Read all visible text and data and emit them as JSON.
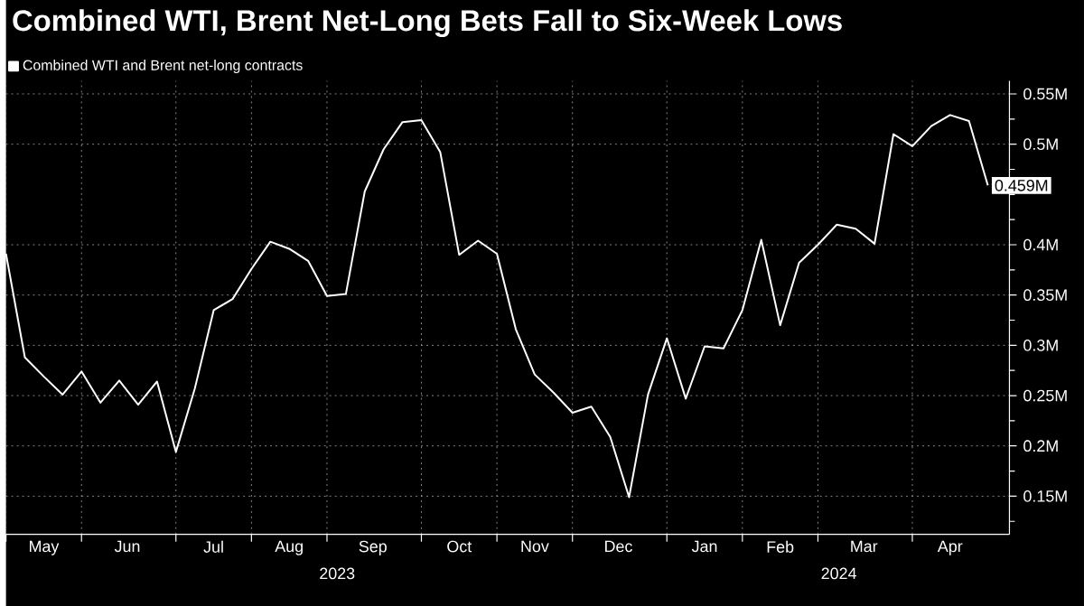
{
  "chart_data": {
    "type": "line",
    "title": "Combined WTI, Brent Net-Long Bets Fall to Six-Week Lows",
    "x": [
      "2023-05-05",
      "2023-05-12",
      "2023-05-19",
      "2023-05-26",
      "2023-06-02",
      "2023-06-09",
      "2023-06-16",
      "2023-06-23",
      "2023-06-30",
      "2023-07-07",
      "2023-07-14",
      "2023-07-21",
      "2023-07-28",
      "2023-08-04",
      "2023-08-11",
      "2023-08-18",
      "2023-08-25",
      "2023-09-01",
      "2023-09-08",
      "2023-09-15",
      "2023-09-22",
      "2023-09-29",
      "2023-10-06",
      "2023-10-13",
      "2023-10-20",
      "2023-10-27",
      "2023-11-03",
      "2023-11-10",
      "2023-11-17",
      "2023-11-24",
      "2023-12-01",
      "2023-12-08",
      "2023-12-15",
      "2023-12-22",
      "2023-12-29",
      "2024-01-05",
      "2024-01-12",
      "2024-01-19",
      "2024-01-26",
      "2024-02-02",
      "2024-02-09",
      "2024-02-16",
      "2024-02-23",
      "2024-03-01",
      "2024-03-08",
      "2024-03-15",
      "2024-03-22",
      "2024-03-29",
      "2024-04-05",
      "2024-04-12",
      "2024-04-19",
      "2024-04-26",
      "2024-05-03"
    ],
    "series": [
      {
        "name": "Combined WTI and Brent net-long contracts",
        "color": "#ffffff",
        "values": [
          0.391,
          0.288,
          0.269,
          0.251,
          0.274,
          0.243,
          0.265,
          0.241,
          0.264,
          0.194,
          0.257,
          0.335,
          0.346,
          0.376,
          0.403,
          0.396,
          0.384,
          0.349,
          0.351,
          0.453,
          0.495,
          0.522,
          0.524,
          0.492,
          0.39,
          0.404,
          0.391,
          0.316,
          0.271,
          0.253,
          0.233,
          0.239,
          0.209,
          0.149,
          0.251,
          0.307,
          0.247,
          0.299,
          0.297,
          0.335,
          0.405,
          0.32,
          0.382,
          0.4,
          0.42,
          0.416,
          0.401,
          0.51,
          0.498,
          0.518,
          0.529,
          0.523,
          0.459
        ],
        "value_labels": [
          null,
          null,
          null,
          null,
          null,
          null,
          null,
          null,
          null,
          null,
          null,
          null,
          null,
          null,
          null,
          null,
          null,
          null,
          null,
          null,
          null,
          null,
          null,
          null,
          null,
          null,
          null,
          null,
          null,
          null,
          null,
          null,
          null,
          null,
          null,
          null,
          null,
          null,
          null,
          null,
          null,
          null,
          null,
          null,
          null,
          null,
          null,
          null,
          null,
          null,
          null,
          null,
          "0.459M"
        ]
      }
    ],
    "xlim": [
      "2023-05-05",
      "2024-05-11"
    ],
    "xticks": [
      {
        "value": "2023-05-05",
        "label": null
      },
      {
        "value": "2023-06-02",
        "label": null
      },
      {
        "value": "2023-07-07",
        "label": null
      },
      {
        "value": "2023-08-04",
        "label": null
      },
      {
        "value": "2023-09-01",
        "label": null
      },
      {
        "value": "2023-10-06",
        "label": null
      },
      {
        "value": "2023-11-03",
        "label": null
      },
      {
        "value": "2023-12-01",
        "label": null
      },
      {
        "value": "2024-01-05",
        "label": null
      },
      {
        "value": "2024-02-02",
        "label": null
      },
      {
        "value": "2024-03-01",
        "label": null
      },
      {
        "value": "2024-04-05",
        "label": null
      },
      {
        "value": "2023-05-19",
        "label": "May"
      },
      {
        "value": "2023-06-19",
        "label": "Jun"
      },
      {
        "value": "2023-07-21",
        "label": "Jul"
      },
      {
        "value": "2023-08-18",
        "label": "Aug"
      },
      {
        "value": "2023-09-18",
        "label": "Sep"
      },
      {
        "value": "2023-10-20",
        "label": "Oct"
      },
      {
        "value": "2023-11-17",
        "label": "Nov"
      },
      {
        "value": "2023-12-18",
        "label": "Dec"
      },
      {
        "value": "2024-01-19",
        "label": "Jan"
      },
      {
        "value": "2024-02-16",
        "label": "Feb"
      },
      {
        "value": "2024-03-18",
        "label": "Mar"
      },
      {
        "value": "2024-04-19",
        "label": "Apr"
      }
    ],
    "annotations": [
      "2023",
      "2024"
    ],
    "ylim": [
      0.112,
      0.563
    ],
    "yticks": [
      {
        "value": 0.125,
        "label": null
      },
      {
        "value": 0.15,
        "label": "0.15M"
      },
      {
        "value": 0.175,
        "label": null
      },
      {
        "value": 0.2,
        "label": "0.2M"
      },
      {
        "value": 0.225,
        "label": null
      },
      {
        "value": 0.25,
        "label": "0.25M"
      },
      {
        "value": 0.275,
        "label": null
      },
      {
        "value": 0.3,
        "label": "0.3M"
      },
      {
        "value": 0.325,
        "label": null
      },
      {
        "value": 0.35,
        "label": "0.35M"
      },
      {
        "value": 0.375,
        "label": null
      },
      {
        "value": 0.4,
        "label": "0.4M"
      },
      {
        "value": 0.425,
        "label": null
      },
      {
        "value": 0.45,
        "label": null
      },
      {
        "value": 0.475,
        "label": null
      },
      {
        "value": 0.5,
        "label": "0.5M"
      },
      {
        "value": 0.525,
        "label": null
      },
      {
        "value": 0.55,
        "label": "0.55M"
      }
    ],
    "grid": true,
    "legend": "top left"
  }
}
